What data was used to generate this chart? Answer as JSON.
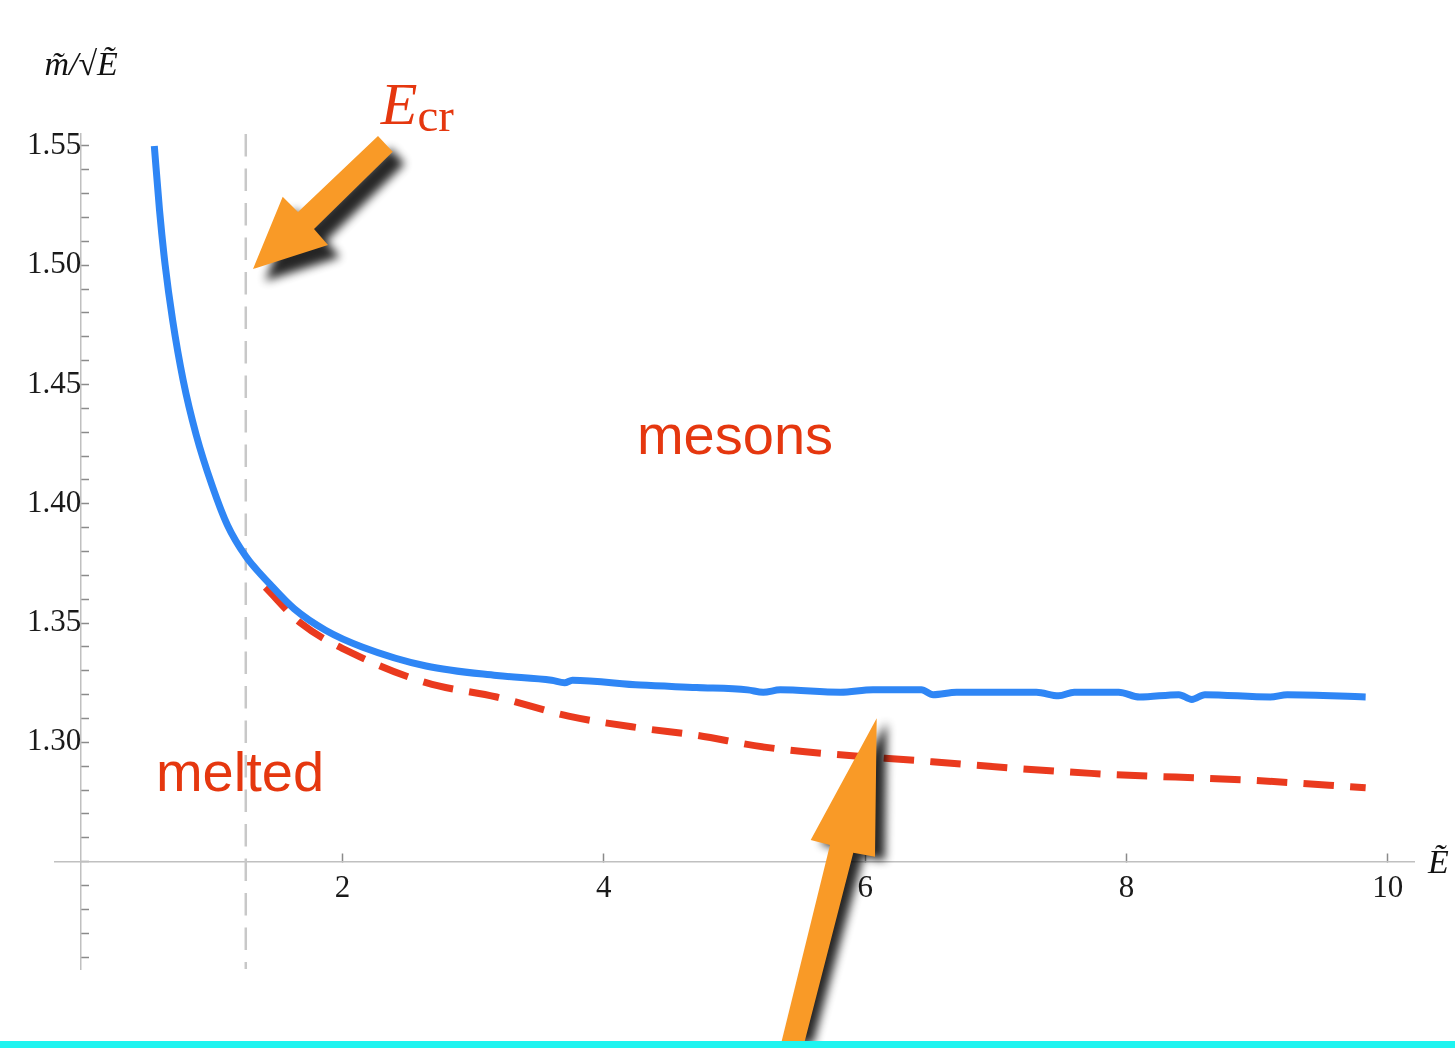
{
  "chart_data": {
    "type": "line",
    "ylabel": "m̃/√Ẽ",
    "xlabel": "Ẽ",
    "xlim": [
      -0.2,
      10.2
    ],
    "ylim": [
      1.205,
      1.555
    ],
    "xticks": [
      2,
      4,
      6,
      8,
      10
    ],
    "yticks": [
      {
        "value": 1.21,
        "label": null
      },
      {
        "value": 1.22,
        "label": null
      },
      {
        "value": 1.23,
        "label": null
      },
      {
        "value": 1.24,
        "label": null
      },
      {
        "value": 1.25,
        "label": null
      },
      {
        "value": 1.26,
        "label": null
      },
      {
        "value": 1.27,
        "label": null
      },
      {
        "value": 1.28,
        "label": null
      },
      {
        "value": 1.29,
        "label": null
      },
      {
        "value": 1.3,
        "label": "1.30"
      },
      {
        "value": 1.31,
        "label": null
      },
      {
        "value": 1.32,
        "label": null
      },
      {
        "value": 1.33,
        "label": null
      },
      {
        "value": 1.34,
        "label": null
      },
      1.35,
      {
        "value": 1.36,
        "label": null
      },
      {
        "value": 1.37,
        "label": null
      },
      {
        "value": 1.38,
        "label": null
      },
      {
        "value": 1.39,
        "label": null
      },
      {
        "value": 1.4,
        "label": "1.40"
      },
      {
        "value": 1.41,
        "label": null
      },
      {
        "value": 1.42,
        "label": null
      },
      {
        "value": 1.43,
        "label": null
      },
      {
        "value": 1.44,
        "label": null
      },
      1.45,
      {
        "value": 1.46,
        "label": null
      },
      {
        "value": 1.47,
        "label": null
      },
      {
        "value": 1.48,
        "label": null
      },
      {
        "value": 1.49,
        "label": null
      },
      {
        "value": 1.5,
        "label": "1.50"
      },
      {
        "value": 1.51,
        "label": null
      },
      {
        "value": 1.52,
        "label": null
      },
      {
        "value": 1.53,
        "label": null
      },
      {
        "value": 1.54,
        "label": null
      },
      1.55
    ],
    "series": [
      {
        "color": "#2f86f5",
        "line_style": "solid",
        "x": [
          0.56,
          0.6,
          0.643,
          0.7,
          0.78,
          0.88,
          1.0,
          1.12,
          1.26,
          1.45,
          1.63,
          1.87,
          2.15,
          2.64,
          3.18,
          3.6,
          3.7,
          3.76,
          4.28,
          4.71,
          5.1,
          5.22,
          5.35,
          5.81,
          6.06,
          6.43,
          6.52,
          6.7,
          7.31,
          7.48,
          7.6,
          7.94,
          8.1,
          8.4,
          8.5,
          8.6,
          9.1,
          9.23,
          9.83
        ],
        "values": [
          1.55,
          1.523,
          1.5,
          1.477,
          1.452,
          1.429,
          1.408,
          1.391,
          1.378,
          1.366,
          1.356,
          1.347,
          1.34,
          1.332,
          1.328,
          1.326,
          1.325,
          1.326,
          1.324,
          1.323,
          1.322,
          1.321,
          1.322,
          1.321,
          1.322,
          1.322,
          1.32,
          1.321,
          1.321,
          1.3195,
          1.321,
          1.321,
          1.319,
          1.32,
          1.318,
          1.32,
          1.319,
          1.32,
          1.319
        ]
      },
      {
        "color": "#ea3a1e",
        "line_style": "dashed",
        "x": [
          1.41,
          1.68,
          2.09,
          2.64,
          3.18,
          3.73,
          4.28,
          4.71,
          5.23,
          6.48,
          7.73,
          8.99,
          9.83
        ],
        "values": [
          1.365,
          1.35,
          1.337,
          1.325,
          1.319,
          1.311,
          1.306,
          1.303,
          1.298,
          1.292,
          1.287,
          1.284,
          1.281
        ]
      }
    ],
    "ref_lines": [
      {
        "axis": "x",
        "value": 1.26,
        "label": "E$_{cr}$",
        "color": "#c8c8c8",
        "line_style": "dashed"
      }
    ],
    "annotations": [
      "mesons",
      "melted"
    ],
    "grid": false,
    "legend": false,
    "marker": "none"
  }
}
